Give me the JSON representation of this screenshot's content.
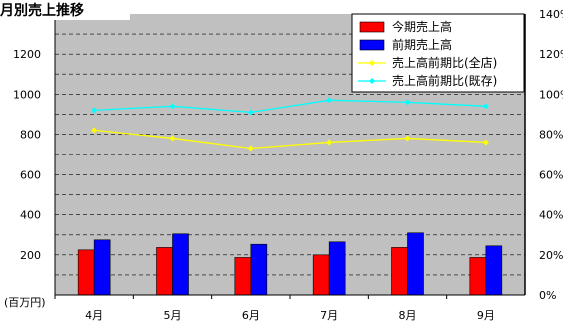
{
  "chart_data": {
    "type": "bar",
    "title": "月別売上推移",
    "unit_label": "(百万円)",
    "categories": [
      "4月",
      "5月",
      "6月",
      "7月",
      "8月",
      "9月"
    ],
    "ylim": [
      0,
      1400
    ],
    "yticks": [
      200,
      400,
      600,
      800,
      1000,
      1200
    ],
    "ylim_right": [
      0,
      140
    ],
    "yticks_right": [
      "0%",
      "20%",
      "40%",
      "60%",
      "80%",
      "100%",
      "120%",
      "140%"
    ],
    "grid": true,
    "legend_position": "top-right",
    "series": [
      {
        "name": "今期売上高",
        "kind": "bar",
        "color": "#ff0000",
        "values": [
          225,
          237,
          187,
          200,
          237,
          187
        ]
      },
      {
        "name": "前期売上高",
        "kind": "bar",
        "color": "#0000ff",
        "values": [
          275,
          305,
          253,
          265,
          310,
          245
        ]
      },
      {
        "name": "売上高前期比(全店)",
        "kind": "line",
        "axis": "right",
        "color": "#ffff00",
        "values": [
          82,
          78,
          73,
          76,
          78,
          76
        ]
      },
      {
        "name": "売上高前期比(既存)",
        "kind": "line",
        "axis": "right",
        "color": "#00ffff",
        "values": [
          92,
          94,
          91,
          97,
          96,
          94
        ]
      }
    ]
  }
}
